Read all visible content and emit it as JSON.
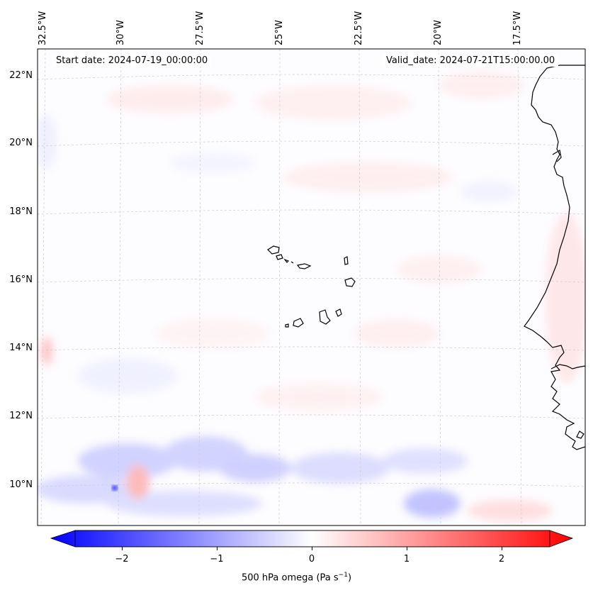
{
  "map": {
    "start_date": "Start date: 2024-07-19_00:00:00",
    "valid_date": "Valid_date: 2024-07-21T15:00:00.00",
    "lon_labels": [
      "32.5°W",
      "30°W",
      "27.5°W",
      "25°W",
      "22.5°W",
      "20°W",
      "17.5°W"
    ],
    "lat_labels": [
      "22°N",
      "20°N",
      "18°N",
      "16°N",
      "14°N",
      "12°N",
      "10°N"
    ],
    "features": [
      "Cape Verde islands",
      "West African coastline"
    ]
  },
  "colorbar": {
    "title_prefix": "500 hPa omega (Pa s",
    "title_sup": "−1",
    "title_suffix": ")",
    "tick_labels": [
      "−2",
      "−1",
      "0",
      "1",
      "2"
    ],
    "range": [
      -2.5,
      2.5
    ],
    "extend": "both",
    "colors": {
      "negative": "#0000ff",
      "zero": "#ffffff",
      "positive": "#ff0000"
    }
  }
}
